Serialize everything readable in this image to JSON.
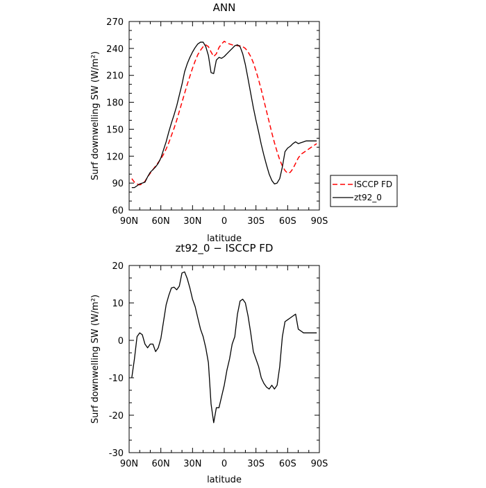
{
  "chart_data": [
    {
      "type": "line",
      "title": "ANN",
      "xlabel": "latitude",
      "ylabel": "Surf downwelling SW (W/m²)",
      "xlim": [
        90,
        -90
      ],
      "ylim": [
        60,
        270
      ],
      "yticks": [
        60,
        90,
        120,
        150,
        180,
        210,
        240,
        270
      ],
      "xticks": [
        90,
        60,
        30,
        0,
        -30,
        -60,
        -90
      ],
      "xticklabels": [
        "90N",
        "60N",
        "30N",
        "0",
        "30S",
        "60S",
        "90S"
      ],
      "legend_position": "right",
      "series": [
        {
          "name": "ISCCP FD",
          "color": "#ff0000",
          "dash": "dashed",
          "x": [
            87.5,
            85,
            82.5,
            80,
            77.5,
            75,
            72.5,
            70,
            67.5,
            65,
            62.5,
            60,
            57.5,
            55,
            52.5,
            50,
            47.5,
            45,
            42.5,
            40,
            37.5,
            35,
            32.5,
            30,
            27.5,
            25,
            22.5,
            20,
            17.5,
            15,
            12.5,
            10,
            7.5,
            5,
            2.5,
            0,
            -2.5,
            -5,
            -7.5,
            -10,
            -12.5,
            -15,
            -17.5,
            -20,
            -22.5,
            -25,
            -27.5,
            -30,
            -32.5,
            -35,
            -37.5,
            -40,
            -42.5,
            -45,
            -47.5,
            -50,
            -52.5,
            -55,
            -57.5,
            -60,
            -62.5,
            -65,
            -67.5,
            -70,
            -72.5,
            -75,
            -77.5,
            -80,
            -82.5,
            -85,
            -87.5
          ],
          "y": [
            95,
            91,
            89,
            88,
            89,
            92,
            97,
            101,
            105,
            109,
            113,
            117,
            122,
            128,
            135,
            143,
            151,
            160,
            170,
            180,
            190,
            200,
            209,
            218,
            226,
            233,
            238,
            242,
            244,
            242,
            236,
            231,
            234,
            241,
            245,
            248,
            246,
            245,
            244,
            244,
            243,
            243,
            242,
            240,
            236,
            231,
            224,
            215,
            205,
            194,
            182,
            170,
            158,
            146,
            135,
            125,
            116,
            109,
            104,
            101,
            102,
            106,
            112,
            118,
            122,
            124,
            126,
            128,
            130,
            132,
            134
          ]
        },
        {
          "name": "zt92_0",
          "color": "#000000",
          "dash": "solid",
          "x": [
            87.5,
            85,
            82.5,
            80,
            77.5,
            75,
            72.5,
            70,
            67.5,
            65,
            62.5,
            60,
            57.5,
            55,
            52.5,
            50,
            47.5,
            45,
            42.5,
            40,
            37.5,
            35,
            32.5,
            30,
            27.5,
            25,
            22.5,
            20,
            17.5,
            15,
            12.5,
            10,
            7.5,
            5,
            2.5,
            0,
            -2.5,
            -5,
            -7.5,
            -10,
            -12.5,
            -15,
            -17.5,
            -20,
            -22.5,
            -25,
            -27.5,
            -30,
            -32.5,
            -35,
            -37.5,
            -40,
            -42.5,
            -45,
            -47.5,
            -50,
            -52.5,
            -55,
            -57.5,
            -60,
            -62.5,
            -65,
            -67.5,
            -70,
            -72.5,
            -75,
            -77.5,
            -80,
            -82.5,
            -85,
            -87.5
          ],
          "y": [
            85,
            85,
            87,
            89,
            90,
            91,
            97,
            102,
            105,
            108,
            112,
            118,
            127,
            136,
            147,
            157,
            166,
            176,
            188,
            200,
            214,
            223,
            230,
            236,
            241,
            245,
            247,
            247,
            242,
            232,
            213,
            212,
            227,
            230,
            229,
            231,
            234,
            237,
            240,
            243,
            244,
            242,
            234,
            222,
            206,
            190,
            174,
            160,
            147,
            133,
            121,
            110,
            100,
            93,
            89,
            90,
            95,
            108,
            125,
            129,
            131,
            134,
            136,
            134,
            135,
            136,
            137,
            137,
            137,
            137,
            137
          ]
        }
      ]
    },
    {
      "type": "line",
      "title": "zt92_0 − ISCCP FD",
      "xlabel": "latitude",
      "ylabel": "Surf downwelling SW (W/m²)",
      "xlim": [
        90,
        -90
      ],
      "ylim": [
        -30,
        20
      ],
      "yticks": [
        -30,
        -20,
        -10,
        0,
        10,
        20
      ],
      "xticks": [
        90,
        60,
        30,
        0,
        -30,
        -60,
        -90
      ],
      "xticklabels": [
        "90N",
        "60N",
        "30N",
        "0",
        "30S",
        "60S",
        "90S"
      ],
      "series": [
        {
          "color": "#000000",
          "dash": "solid",
          "x": [
            87.5,
            85,
            82.5,
            80,
            77.5,
            75,
            72.5,
            70,
            67.5,
            65,
            62.5,
            60,
            57.5,
            55,
            52.5,
            50,
            47.5,
            45,
            42.5,
            40,
            37.5,
            35,
            32.5,
            30,
            27.5,
            25,
            22.5,
            20,
            17.5,
            15,
            12.5,
            10,
            7.5,
            5,
            2.5,
            0,
            -2.5,
            -5,
            -7.5,
            -10,
            -12.5,
            -15,
            -17.5,
            -20,
            -22.5,
            -25,
            -27.5,
            -30,
            -32.5,
            -35,
            -37.5,
            -40,
            -42.5,
            -45,
            -47.5,
            -50,
            -52.5,
            -55,
            -57.5,
            -60,
            -62.5,
            -65,
            -67.5,
            -70,
            -72.5,
            -75,
            -77.5,
            -80,
            -82.5,
            -85,
            -87.5
          ],
          "y": [
            -10,
            -5,
            1,
            2,
            1.5,
            -1,
            -2,
            -1,
            -1,
            -3,
            -2,
            0.5,
            5,
            9.5,
            12,
            14,
            14.2,
            13.5,
            14.5,
            18,
            18.3,
            16.5,
            14,
            11,
            9,
            6,
            3,
            1,
            -2,
            -6,
            -17,
            -22,
            -18,
            -18,
            -15,
            -12,
            -8,
            -5,
            -1,
            1,
            7,
            10.5,
            11,
            10,
            6.5,
            2,
            -3,
            -5,
            -7,
            -10,
            -11.5,
            -12.5,
            -13,
            -12,
            -13,
            -12,
            -7,
            1,
            5,
            5.5,
            6,
            6.5,
            7,
            3,
            2.5,
            2,
            2,
            2,
            2,
            2,
            2
          ]
        }
      ]
    }
  ]
}
